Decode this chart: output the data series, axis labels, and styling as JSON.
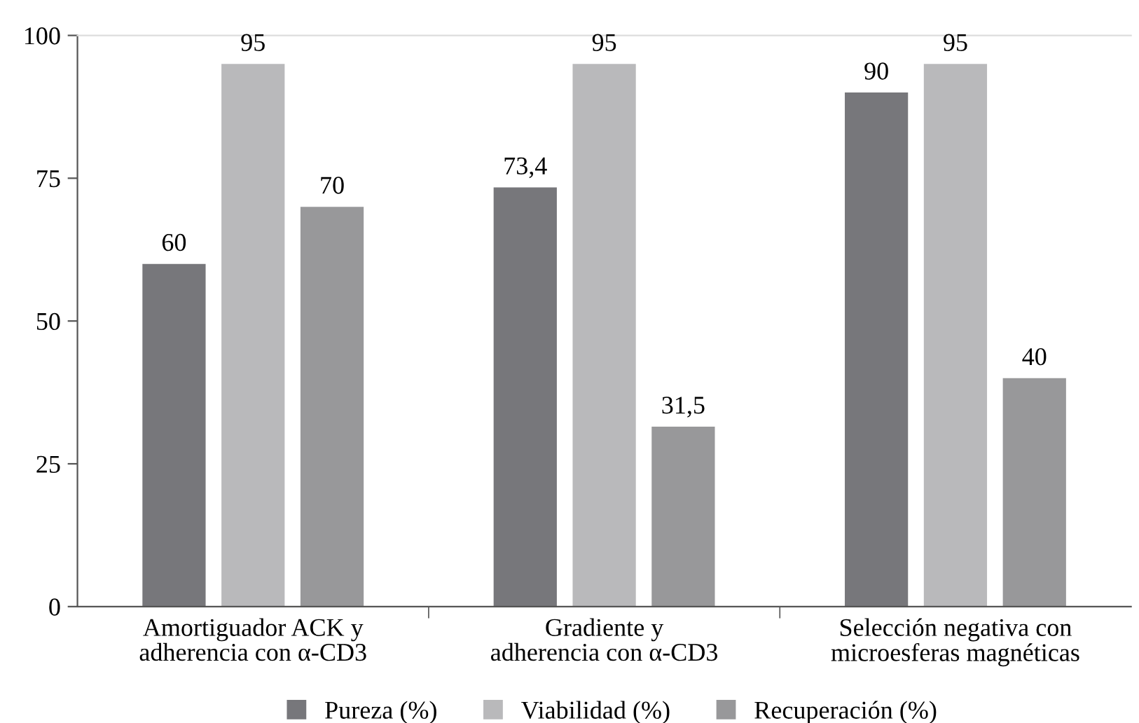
{
  "chart_data": {
    "type": "bar",
    "categories": [
      "Amortiguador ACK y\nadherencia con α-CD3",
      "Gradiente y\nadherencia con α-CD3",
      "Selección negativa con\nmicroesferas magnéticas"
    ],
    "series": [
      {
        "name": "Pureza (%)",
        "color": "#77777b",
        "values": [
          60,
          73.4,
          90
        ],
        "value_labels": [
          "60",
          "73,4",
          "90"
        ]
      },
      {
        "name": "Viabilidad (%)",
        "color": "#b9b9bb",
        "values": [
          95,
          95,
          95
        ],
        "value_labels": [
          "95",
          "95",
          "95"
        ]
      },
      {
        "name": "Recuperación (%)",
        "color": "#98989a",
        "values": [
          70,
          31.5,
          40
        ],
        "value_labels": [
          "70",
          "31,5",
          "40"
        ]
      }
    ],
    "ylim": [
      0,
      100
    ],
    "yticks": [
      0,
      25,
      50,
      75,
      100
    ],
    "grid": false,
    "legend": "bottom"
  }
}
